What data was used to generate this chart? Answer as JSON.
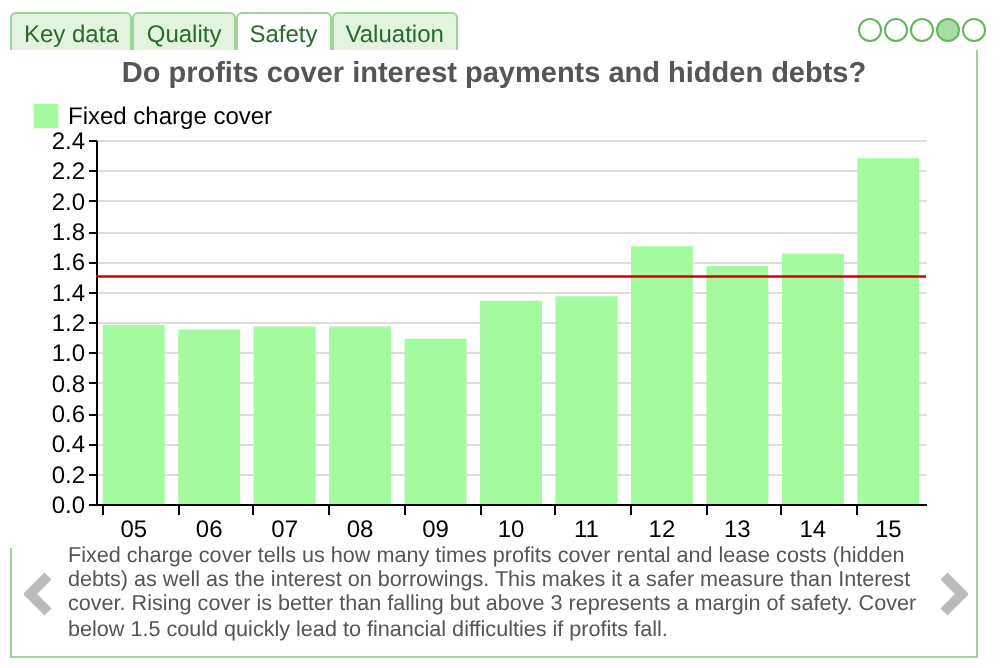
{
  "chart_data": {
    "type": "bar",
    "title": "Do profits cover interest payments and hidden debts?",
    "categories": [
      "05",
      "06",
      "07",
      "08",
      "09",
      "10",
      "11",
      "12",
      "13",
      "14",
      "15"
    ],
    "series": [
      {
        "name": "Fixed charge cover",
        "color": "#a3fa9f",
        "values": [
          1.18,
          1.15,
          1.17,
          1.17,
          1.09,
          1.34,
          1.37,
          1.7,
          1.57,
          1.65,
          2.28
        ]
      }
    ],
    "ylim": [
      0,
      2.4
    ],
    "yticks": [
      {
        "value": 0,
        "label": "0.0"
      },
      {
        "value": 0.2,
        "label": "0.2"
      },
      {
        "value": 0.4,
        "label": "0.4"
      },
      {
        "value": 0.6,
        "label": "0.6"
      },
      {
        "value": 0.8,
        "label": "0.8"
      },
      {
        "value": 1,
        "label": "1.0"
      },
      {
        "value": 1.2,
        "label": "1.2"
      },
      {
        "value": 1.4,
        "label": "1.4"
      },
      {
        "value": 1.6,
        "label": "1.6"
      },
      {
        "value": 1.8,
        "label": "1.8"
      },
      {
        "value": 2,
        "label": "2.0"
      },
      {
        "value": 2.2,
        "label": "2.2"
      },
      {
        "value": 2.4,
        "label": "2.4"
      }
    ],
    "ref_lines": [
      {
        "axis": "y",
        "value": 1.5,
        "color": "#d40000"
      }
    ],
    "grid": "y",
    "legend": "top left",
    "annotations": [
      "Key data",
      "Quality",
      "Safety",
      "Valuation",
      "Fixed charge cover tells us how many times profits cover rental and lease costs (hidden debts) as well as the interest on borrowings. This makes it a safer measure than Interest cover. Rising cover is better than falling but above 3 represents a margin of safety. Cover below 1.5 could quickly lead to financial difficulties if profits fall."
    ]
  }
}
